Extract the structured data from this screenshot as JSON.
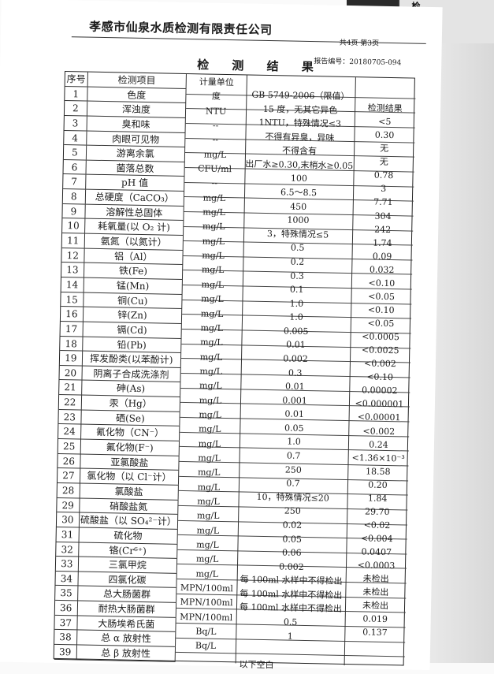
{
  "header": {
    "company": "孝感市仙泉水质检测有限责任公司",
    "pages": "共4页 第3页",
    "report_no": "报告编号：20180705-094",
    "title": "检 测 结 果",
    "background_text": "检任公"
  },
  "table": {
    "headers": {
      "seq": "序号",
      "item": "检测项目",
      "unit": "计量单位",
      "limit": "GB 5749-2006（限值）",
      "result": "检测结果"
    },
    "items": [
      "色度",
      "浑浊度",
      "臭和味",
      "肉眼可见物",
      "游离余氯",
      "菌落总数",
      "pH 值",
      "总硬度（CaCO₃）",
      "溶解性总固体",
      "耗氧量(以 O₂ 计)",
      "氨氮（以氮计）",
      "铝（Al）",
      "铁(Fe)",
      "锰(Mn)",
      "铜(Cu)",
      "锌(Zn)",
      "镉(Cd)",
      "铅(Pb)",
      "挥发酚类(以苯酚计)",
      "阴离子合成洗涤剂",
      "砷(As)",
      "汞（Hg）",
      "硒(Se)",
      "氰化物（CN⁻）",
      "氟化物(F⁻)",
      "亚氯酸盐",
      "氯化物（以 Cl⁻计）",
      "氯酸盐",
      "硝酸盐氮",
      "硫酸盐（以 SO₄²⁻计）",
      "硫化物",
      "铬(Cr⁶⁺)",
      "三氯甲烷",
      "四氯化碳",
      "总大肠菌群",
      "耐热大肠菌群",
      "大肠埃希氏菌",
      "总 α 放射性",
      "总 β 放射性"
    ],
    "units": [
      "度",
      "NTU",
      "--",
      "--",
      "mg/L",
      "CFU/ml",
      "--",
      "mg/L",
      "mg/L",
      "mg/L",
      "mg/L",
      "mg/L",
      "mg/L",
      "mg/L",
      "mg/L",
      "mg/L",
      "mg/L",
      "mg/L",
      "mg/L",
      "mg/L",
      "mg/L",
      "mg/L",
      "mg/L",
      "mg/L",
      "mg/L",
      "mg/L",
      "mg/L",
      "mg/L",
      "mg/L",
      "mg/L",
      "mg/L",
      "mg/L",
      "mg/L",
      "mg/L",
      "MPN/100ml",
      "MPN/100ml",
      "MPN/100ml",
      "Bq/L",
      "Bq/L"
    ],
    "limits": [
      "15 度，无其它异色",
      "1NTU，特殊情况≤3",
      "不得有异臭，异味",
      "不得含有",
      "出厂水≥0.30,末梢水≥0.05",
      "100",
      "6.5～8.5",
      "450",
      "1000",
      "3，特殊情况≤5",
      "0.5",
      "0.2",
      "0.3",
      "0.1",
      "1.0",
      "1.0",
      "0.005",
      "0.01",
      "0.002",
      "0.3",
      "0.01",
      "0.001",
      "0.01",
      "0.05",
      "1.0",
      "0.7",
      "250",
      "0.7",
      "10，特殊情况≤20",
      "250",
      "0.02",
      "0.05",
      "0.06",
      "0.002",
      "每 100ml 水样中不得检出",
      "每 100ml 水样中不得检出",
      "每 100ml 水样中不得检出",
      "0.5",
      "1"
    ],
    "results": [
      "<5",
      "0.30",
      "无",
      "无",
      "0.78",
      "3",
      "7.71",
      "304",
      "242",
      "1.74",
      "0.09",
      "0.032",
      "<0.10",
      "<0.05",
      "<0.10",
      "<0.05",
      "<0.0005",
      "<0.0025",
      "<0.002",
      "<0.10",
      "0.00002",
      "<0.000001",
      "<0.00001",
      "<0.002",
      "0.24",
      "<1.36×10⁻³",
      "18.58",
      "0.20",
      "1.84",
      "29.70",
      "<0.02",
      "<0.004",
      "0.0407",
      "<0.0003",
      "未检出",
      "未检出",
      "未检出",
      "0.019",
      "0.137"
    ]
  },
  "footer": {
    "text": "以下空白"
  }
}
